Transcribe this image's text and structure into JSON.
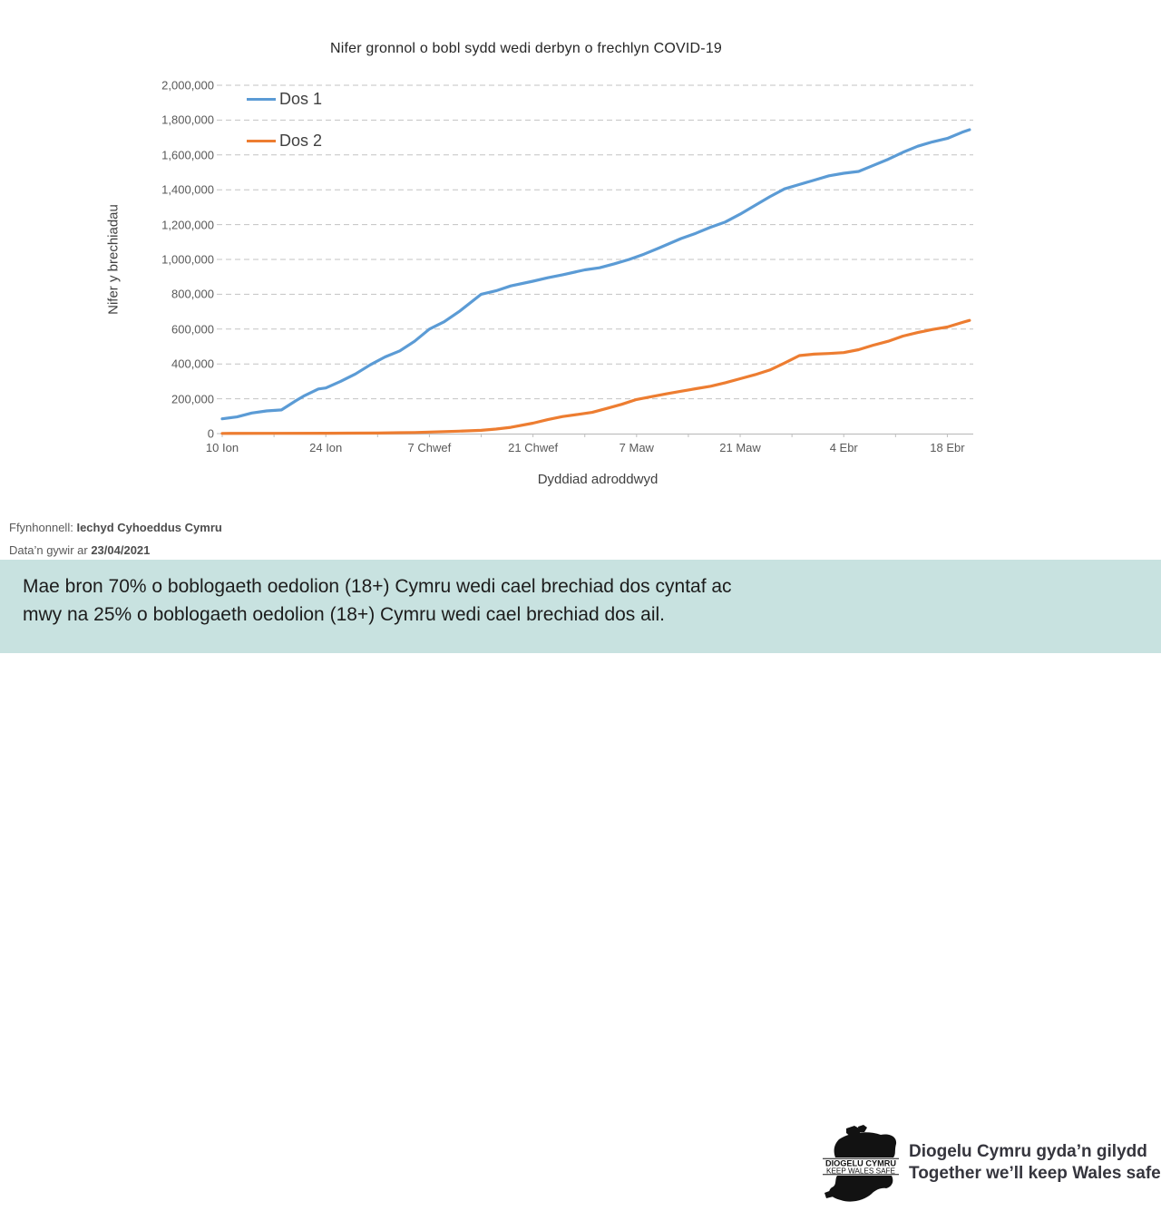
{
  "chart": {
    "title": "Nifer gronnol o bobl sydd wedi derbyn o frechlyn COVID-19",
    "y_axis": {
      "title": "Nifer y brechiadau",
      "tick_labels": [
        "0",
        "200,000",
        "400,000",
        "600,000",
        "800,000",
        "1,000,000",
        "1,200,000",
        "1,400,000",
        "1,600,000",
        "1,800,000",
        "2,000,000"
      ]
    },
    "x_axis": {
      "title": "Dyddiad adroddwyd",
      "tick_labels": [
        "10 Ion",
        "24 Ion",
        "7 Chwef",
        "21 Chwef",
        "7 Maw",
        "21 Maw",
        "4 Ebr",
        "18 Ebr"
      ],
      "tick_days": [
        0,
        14,
        28,
        42,
        56,
        70,
        84,
        98
      ]
    },
    "legend": [
      {
        "label": "Dos 1",
        "color": "#5B9BD5"
      },
      {
        "label": "Dos 2",
        "color": "#ED7D31"
      }
    ],
    "colors": {
      "gridline": "#C3C3C3",
      "axis": "#BFBFBF",
      "tick_text": "#595959"
    }
  },
  "chart_data": {
    "type": "line",
    "title": "Nifer gronnol o bobl sydd wedi derbyn o frechlyn COVID-19",
    "xlabel": "Dyddiad adroddwyd",
    "ylabel": "Nifer y brechiadau",
    "ylim": [
      0,
      2000000
    ],
    "x_unit": "days since 10 Ion (10 Jan 2021)",
    "x_range_days": [
      0,
      101.5
    ],
    "grid": "horizontal-dashed",
    "legend_position": "top-left-inside",
    "series": [
      {
        "name": "Dos 1",
        "color": "#5B9BD5",
        "points": [
          [
            0,
            85000
          ],
          [
            2,
            96000
          ],
          [
            4,
            118000
          ],
          [
            6,
            130000
          ],
          [
            8,
            136000
          ],
          [
            10,
            190000
          ],
          [
            11,
            215000
          ],
          [
            13,
            256000
          ],
          [
            14,
            262000
          ],
          [
            16,
            300000
          ],
          [
            18,
            342000
          ],
          [
            20,
            395000
          ],
          [
            22,
            440000
          ],
          [
            24,
            475000
          ],
          [
            26,
            530000
          ],
          [
            28,
            600000
          ],
          [
            30,
            642000
          ],
          [
            32,
            700000
          ],
          [
            35,
            800000
          ],
          [
            37,
            820000
          ],
          [
            39,
            848000
          ],
          [
            42,
            875000
          ],
          [
            44,
            895000
          ],
          [
            46,
            912000
          ],
          [
            49,
            940000
          ],
          [
            51,
            952000
          ],
          [
            53,
            975000
          ],
          [
            55,
            1000000
          ],
          [
            57,
            1030000
          ],
          [
            59,
            1065000
          ],
          [
            62,
            1120000
          ],
          [
            64,
            1150000
          ],
          [
            66,
            1185000
          ],
          [
            68,
            1215000
          ],
          [
            70,
            1260000
          ],
          [
            72,
            1310000
          ],
          [
            74,
            1360000
          ],
          [
            76,
            1405000
          ],
          [
            78,
            1430000
          ],
          [
            80,
            1455000
          ],
          [
            82,
            1480000
          ],
          [
            84,
            1495000
          ],
          [
            86,
            1505000
          ],
          [
            88,
            1540000
          ],
          [
            90,
            1575000
          ],
          [
            92,
            1615000
          ],
          [
            94,
            1650000
          ],
          [
            96,
            1675000
          ],
          [
            98,
            1695000
          ],
          [
            100,
            1730000
          ],
          [
            101,
            1745000
          ]
        ]
      },
      {
        "name": "Dos 2",
        "color": "#ED7D31",
        "points": [
          [
            0,
            1000
          ],
          [
            7,
            1500
          ],
          [
            14,
            2200
          ],
          [
            21,
            3200
          ],
          [
            24,
            5000
          ],
          [
            26,
            6500
          ],
          [
            28,
            9000
          ],
          [
            30,
            11500
          ],
          [
            32,
            14000
          ],
          [
            35,
            19000
          ],
          [
            37,
            26000
          ],
          [
            39,
            36000
          ],
          [
            42,
            60000
          ],
          [
            44,
            80000
          ],
          [
            46,
            98000
          ],
          [
            48,
            110000
          ],
          [
            50,
            122000
          ],
          [
            52,
            145000
          ],
          [
            54,
            168000
          ],
          [
            56,
            196000
          ],
          [
            58,
            212000
          ],
          [
            60,
            228000
          ],
          [
            62,
            243000
          ],
          [
            64,
            258000
          ],
          [
            66,
            272000
          ],
          [
            68,
            292000
          ],
          [
            70,
            315000
          ],
          [
            72,
            338000
          ],
          [
            74,
            365000
          ],
          [
            76,
            405000
          ],
          [
            78,
            448000
          ],
          [
            80,
            456000
          ],
          [
            82,
            460000
          ],
          [
            84,
            465000
          ],
          [
            86,
            482000
          ],
          [
            88,
            508000
          ],
          [
            90,
            530000
          ],
          [
            92,
            560000
          ],
          [
            94,
            580000
          ],
          [
            96,
            598000
          ],
          [
            98,
            612000
          ],
          [
            100,
            638000
          ],
          [
            101,
            650000
          ]
        ]
      }
    ]
  },
  "source": {
    "label": "Ffynhonnell:",
    "value": "Iechyd Cyhoeddus Cymru",
    "date_label": "Data’n gywir ar",
    "date_value": "23/04/2021"
  },
  "banner": {
    "bg_color": "#C8E2E0",
    "line1": "Mae bron 70% o boblogaeth oedolion (18+) Cymru wedi cael brechiad dos cyntaf ac",
    "line2": "mwy na 25% o boblogaeth oedolion (18+) Cymru wedi cael brechiad dos ail."
  },
  "footer_logo": {
    "line1": "DIOGELU CYMRU",
    "line2": "KEEP WALES SAFE"
  },
  "slogan": {
    "line1": "Diogelu Cymru gyda’n gilydd",
    "line2": "Together we’ll keep Wales safe"
  }
}
